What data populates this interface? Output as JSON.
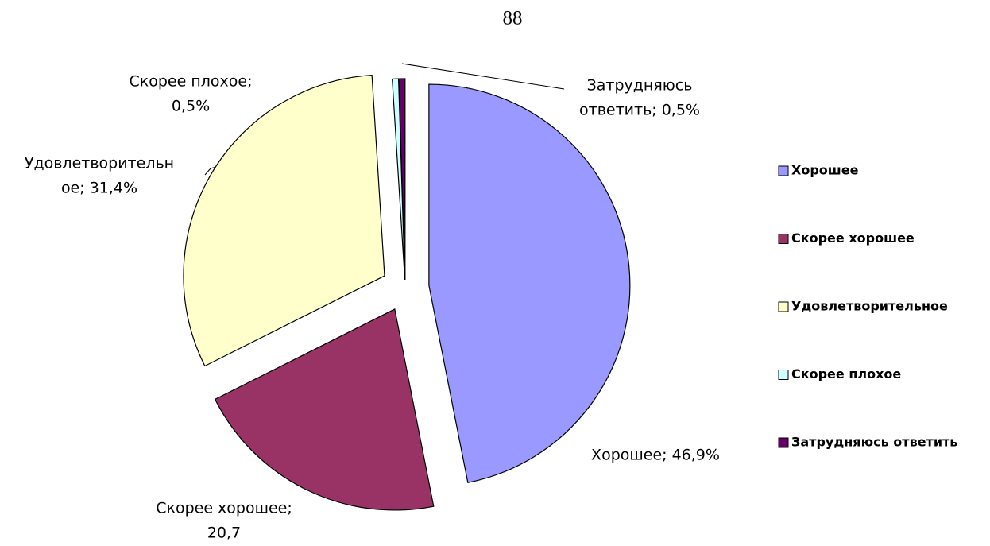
{
  "page_number": "88",
  "chart_data": {
    "type": "pie",
    "categories": [
      "Хорошее",
      "Скорее хорошее",
      "Удовлетворительное",
      "Скорее плохое",
      "Затрудняюсь ответить"
    ],
    "values": [
      46.9,
      20.7,
      31.4,
      0.5,
      0.5
    ],
    "value_labels": [
      [
        "Хорошее; 46,9%"
      ],
      [
        "Скорее хорошее;",
        "20,7"
      ],
      [
        "Удовлетворительн",
        "ое; 31,4%"
      ],
      [
        "Скорее плохое;",
        "0,5%"
      ],
      [
        "Затрудняюсь",
        "ответить; 0,5%"
      ]
    ],
    "colors": [
      "#9999ff",
      "#993366",
      "#ffffcc",
      "#ccffff",
      "#660066"
    ],
    "legend": "right"
  }
}
